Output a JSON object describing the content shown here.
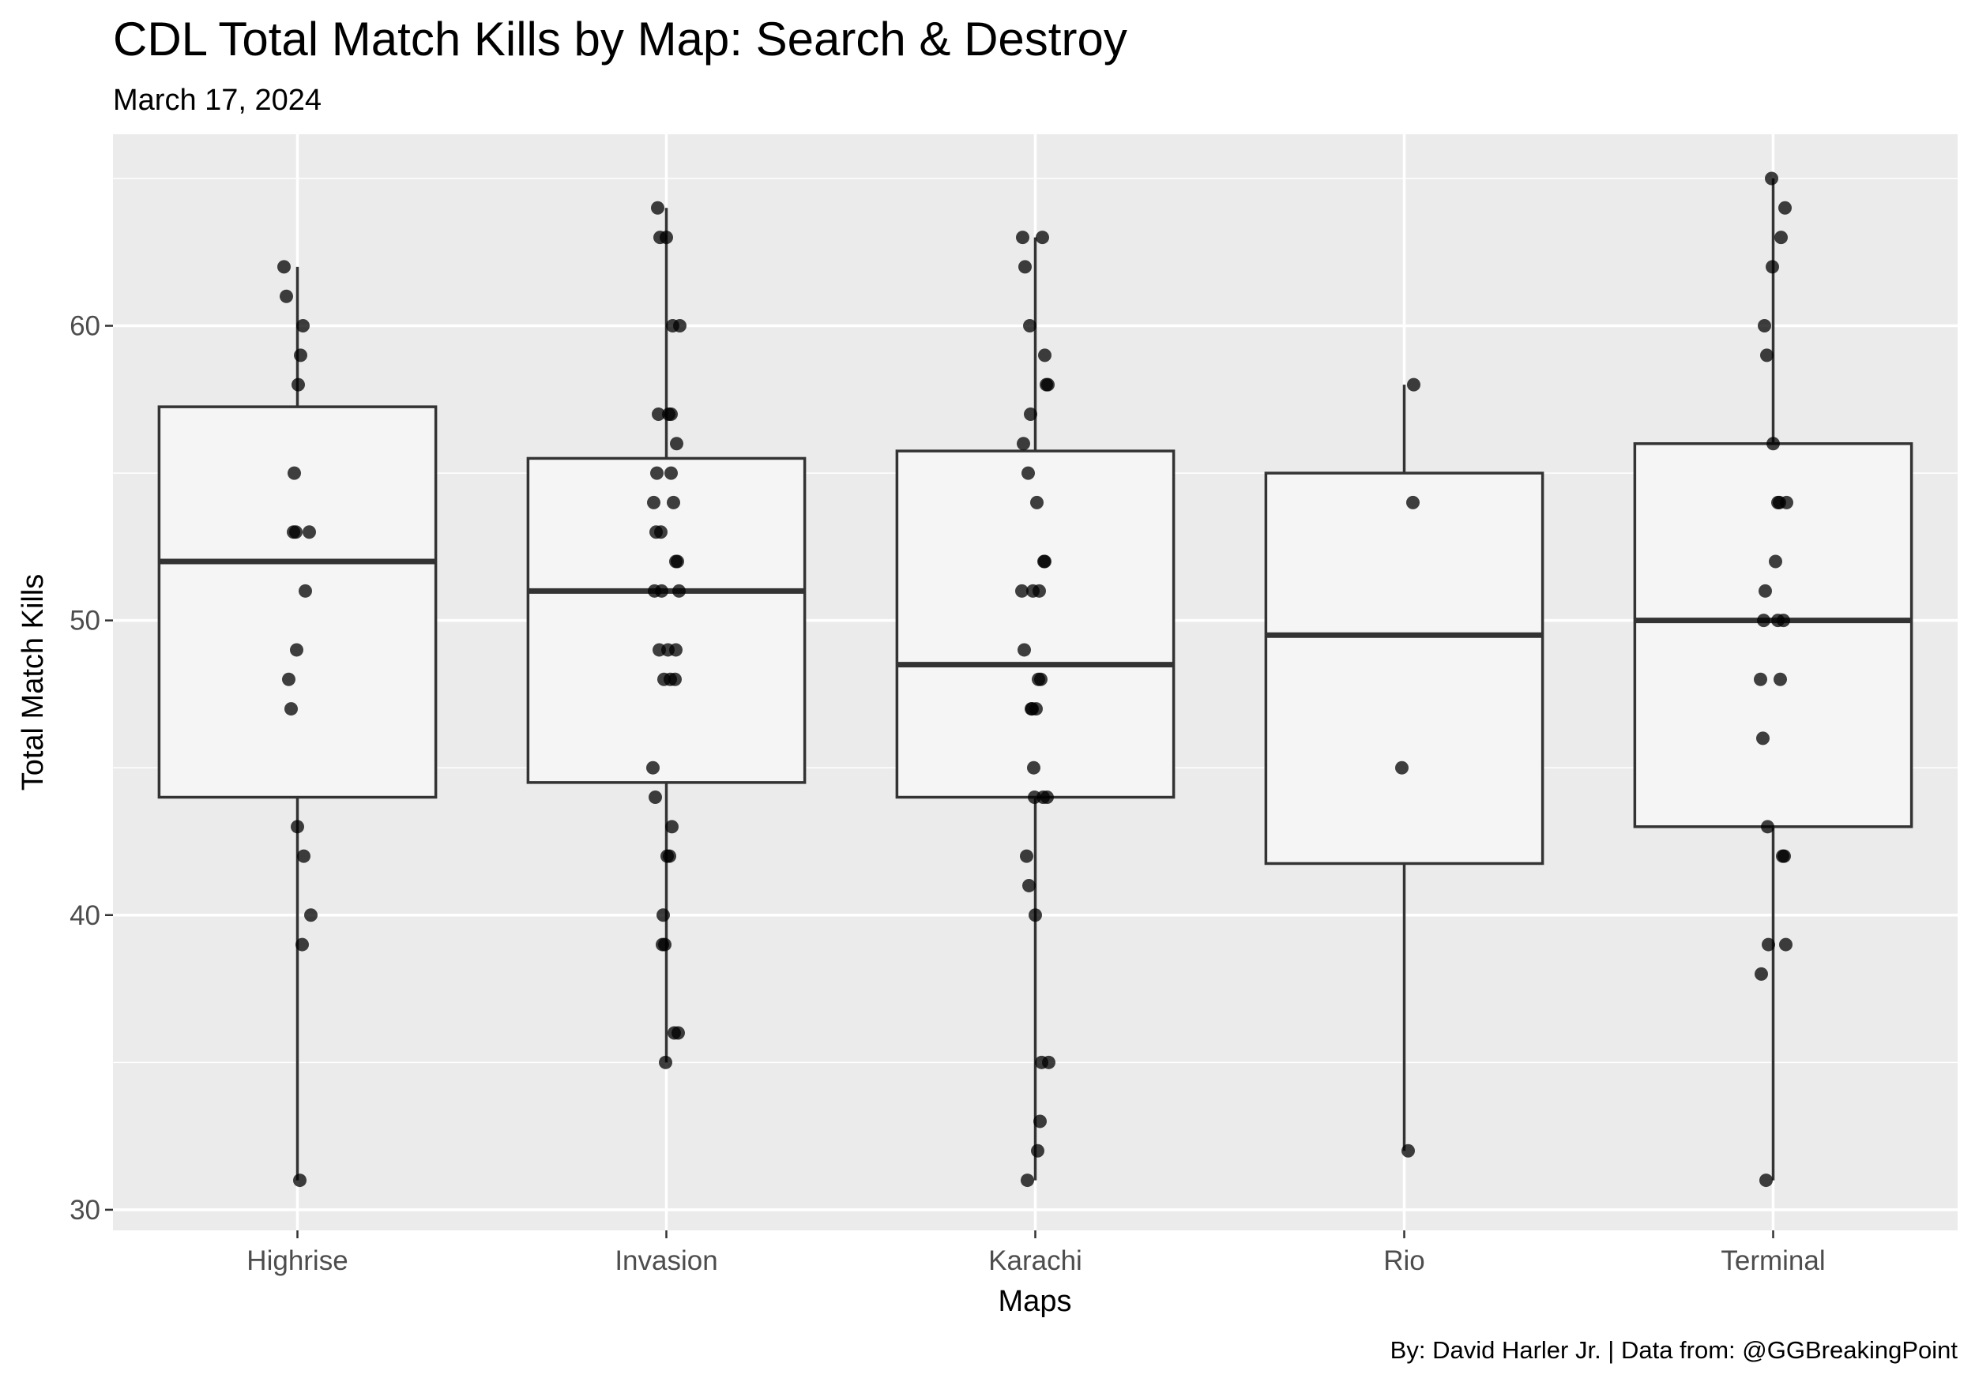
{
  "chart_data": {
    "type": "boxplot",
    "title": "CDL Total Match Kills by Map: Search & Destroy",
    "subtitle": "March 17, 2024",
    "xlabel": "Maps",
    "ylabel": "Total Match Kills",
    "caption": "By: David Harler Jr. | Data from: @GGBreakingPoint",
    "categories": [
      "Highrise",
      "Invasion",
      "Karachi",
      "Rio",
      "Terminal"
    ],
    "ylim": [
      29.3,
      66.5
    ],
    "yticks": [
      30,
      40,
      50,
      60
    ],
    "grid": true,
    "boxes": [
      {
        "category": "Highrise",
        "min": 31,
        "q1": 44,
        "median": 52,
        "q3": 57.25,
        "max": 62
      },
      {
        "category": "Invasion",
        "min": 35,
        "q1": 44.5,
        "median": 51,
        "q3": 55.5,
        "max": 64
      },
      {
        "category": "Karachi",
        "min": 31,
        "q1": 44,
        "median": 48.5,
        "q3": 55.75,
        "max": 63
      },
      {
        "category": "Rio",
        "min": 32,
        "q1": 41.75,
        "median": 49.5,
        "q3": 55,
        "max": 58
      },
      {
        "category": "Terminal",
        "min": 31,
        "q1": 43,
        "median": 50,
        "q3": 56,
        "max": 65
      }
    ],
    "points": [
      {
        "category": "Highrise",
        "values": [
          62,
          61,
          60,
          59,
          58,
          55,
          53,
          53,
          53,
          51,
          49,
          48,
          47,
          43,
          42,
          40,
          39,
          31
        ]
      },
      {
        "category": "Invasion",
        "values": [
          64,
          63,
          63,
          60,
          60,
          57,
          57,
          57,
          56,
          55,
          55,
          54,
          54,
          53,
          53,
          52,
          52,
          51,
          51,
          51,
          49,
          49,
          49,
          48,
          48,
          48,
          45,
          44,
          43,
          42,
          42,
          40,
          39,
          39,
          36,
          36,
          35
        ]
      },
      {
        "category": "Karachi",
        "values": [
          63,
          63,
          62,
          60,
          59,
          58,
          58,
          57,
          56,
          55,
          54,
          52,
          52,
          51,
          51,
          51,
          49,
          48,
          48,
          47,
          47,
          47,
          45,
          44,
          44,
          44,
          42,
          41,
          40,
          35,
          35,
          33,
          32,
          31
        ]
      },
      {
        "category": "Rio",
        "values": [
          58,
          54,
          45,
          32
        ]
      },
      {
        "category": "Terminal",
        "values": [
          65,
          64,
          63,
          62,
          60,
          59,
          56,
          54,
          54,
          54,
          52,
          51,
          50,
          50,
          50,
          48,
          48,
          46,
          43,
          42,
          42,
          39,
          39,
          38,
          31
        ]
      }
    ],
    "colors": {
      "panel": "#ebebeb",
      "grid_major": "#ffffff",
      "box_fill": "#f5f5f5",
      "box_stroke": "#333333",
      "point": "#000000"
    }
  }
}
